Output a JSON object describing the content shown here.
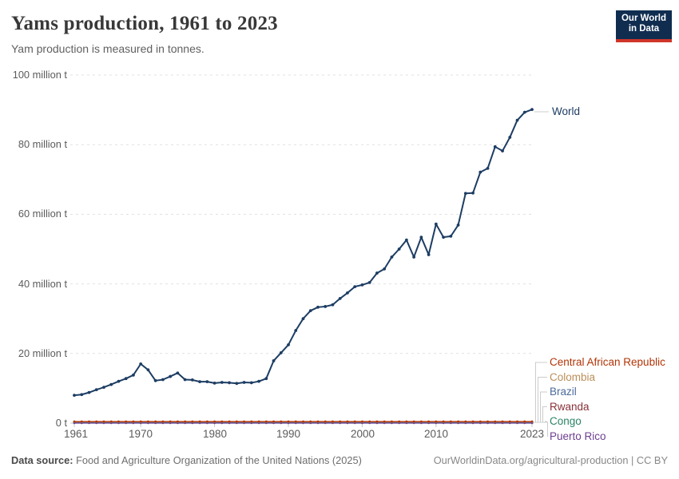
{
  "header": {
    "title": "Yams production, 1961 to 2023",
    "subtitle": "Yam production is measured in tonnes."
  },
  "logo": {
    "line1": "Our World",
    "line2": "in Data",
    "bg_color": "#102d50",
    "accent_color": "#cf3529"
  },
  "footer": {
    "source_label": "Data source:",
    "source_text": " Food and Agriculture Organization of the United Nations (2025)",
    "right_text": "OurWorldinData.org/agricultural-production | CC BY"
  },
  "chart_data": {
    "type": "line",
    "title": "Yams production, 1961 to 2023",
    "unit": "tonnes",
    "x_description": "annual values, 1961 to 2023",
    "xlim": [
      1961,
      2023
    ],
    "ylim": [
      0,
      100
    ],
    "grid": "horizontal dashed gridlines",
    "legend_position": "labels at right edge of lines",
    "xticks": [
      1961,
      1970,
      1980,
      1990,
      2000,
      2010,
      2023
    ],
    "yticks": [
      {
        "value": 0,
        "label": "0 t"
      },
      {
        "value": 20,
        "label": "20 million t"
      },
      {
        "value": 40,
        "label": "40 million t"
      },
      {
        "value": 60,
        "label": "60 million t"
      },
      {
        "value": 80,
        "label": "80 million t"
      },
      {
        "value": 100,
        "label": "100 million t"
      }
    ],
    "y_unit_of_values": "million tonnes",
    "series": [
      {
        "name": "World",
        "color": "#1d3d63",
        "values": [
          8.0,
          8.2,
          8.8,
          9.6,
          10.3,
          11.1,
          12.0,
          12.8,
          13.8,
          17.0,
          15.3,
          12.2,
          12.5,
          13.4,
          14.4,
          12.5,
          12.4,
          11.9,
          11.9,
          11.5,
          11.7,
          11.6,
          11.4,
          11.7,
          11.6,
          12.0,
          12.8,
          17.9,
          20.2,
          22.5,
          26.6,
          30.0,
          32.3,
          33.3,
          33.5,
          34.0,
          35.8,
          37.4,
          39.2,
          39.7,
          40.4,
          43.1,
          44.3,
          47.7,
          50.0,
          52.6,
          47.7,
          53.4,
          48.4,
          57.2,
          53.4,
          53.7,
          56.9,
          66.0,
          66.1,
          72.1,
          73.2,
          79.4,
          78.2,
          82.1,
          87.0,
          89.3,
          90.1
        ]
      },
      {
        "name": "Central African Republic",
        "color": "#B13507",
        "flat_value_million_t": 0.45
      },
      {
        "name": "Colombia",
        "color": "#BC8E5A",
        "flat_value_million_t": 0.4
      },
      {
        "name": "Brazil",
        "color": "#4C6A9C",
        "flat_value_million_t": 0.25
      },
      {
        "name": "Rwanda",
        "color": "#883039",
        "flat_value_million_t": 0.3
      },
      {
        "name": "Congo",
        "color": "#2C8465",
        "flat_value_million_t": 0.35
      },
      {
        "name": "Puerto Rico",
        "color": "#6D3E91",
        "flat_value_million_t": 0.03
      }
    ]
  }
}
